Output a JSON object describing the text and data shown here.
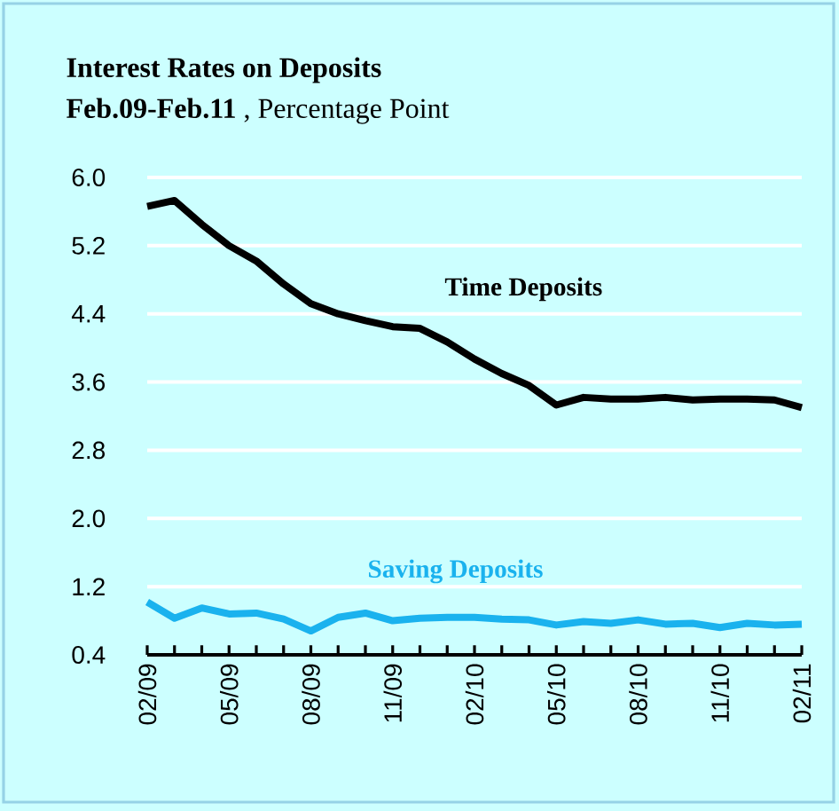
{
  "chart_data": {
    "type": "line",
    "title": "Interest Rates on Deposits",
    "subtitle": "**Feb.09-Feb.11** , Percentage Point",
    "categories": [
      "02/09",
      null,
      null,
      "05/09",
      null,
      null,
      "08/09",
      null,
      null,
      "11/09",
      null,
      null,
      "02/10",
      null,
      null,
      "05/10",
      null,
      null,
      "08/10",
      null,
      null,
      "11/10",
      null,
      null,
      "02/11"
    ],
    "series": [
      {
        "name": "Time Deposits",
        "color": "#000000",
        "values": [
          5.66,
          5.73,
          5.45,
          5.2,
          5.02,
          4.75,
          4.52,
          4.4,
          4.32,
          4.25,
          4.23,
          4.07,
          3.87,
          3.7,
          3.56,
          3.33,
          3.42,
          3.4,
          3.4,
          3.42,
          3.39,
          3.4,
          3.4,
          3.39,
          3.3
        ]
      },
      {
        "name": "Saving Deposits",
        "color": "#1ab2ee",
        "values": [
          1.02,
          0.83,
          0.95,
          0.88,
          0.89,
          0.82,
          0.68,
          0.84,
          0.89,
          0.8,
          0.83,
          0.84,
          0.84,
          0.82,
          0.81,
          0.75,
          0.79,
          0.77,
          0.81,
          0.76,
          0.77,
          0.72,
          0.77,
          0.75,
          0.76
        ]
      }
    ],
    "ylim": [
      0.4,
      6.0
    ],
    "yticks": [
      0.4,
      1.2,
      {
        "value": 2,
        "label": "2.0"
      },
      2.8,
      3.6,
      4.4,
      5.2,
      {
        "value": 6,
        "label": "6.0"
      }
    ],
    "grid": "y",
    "legend": false,
    "marker": "none",
    "line_style": "solid"
  }
}
